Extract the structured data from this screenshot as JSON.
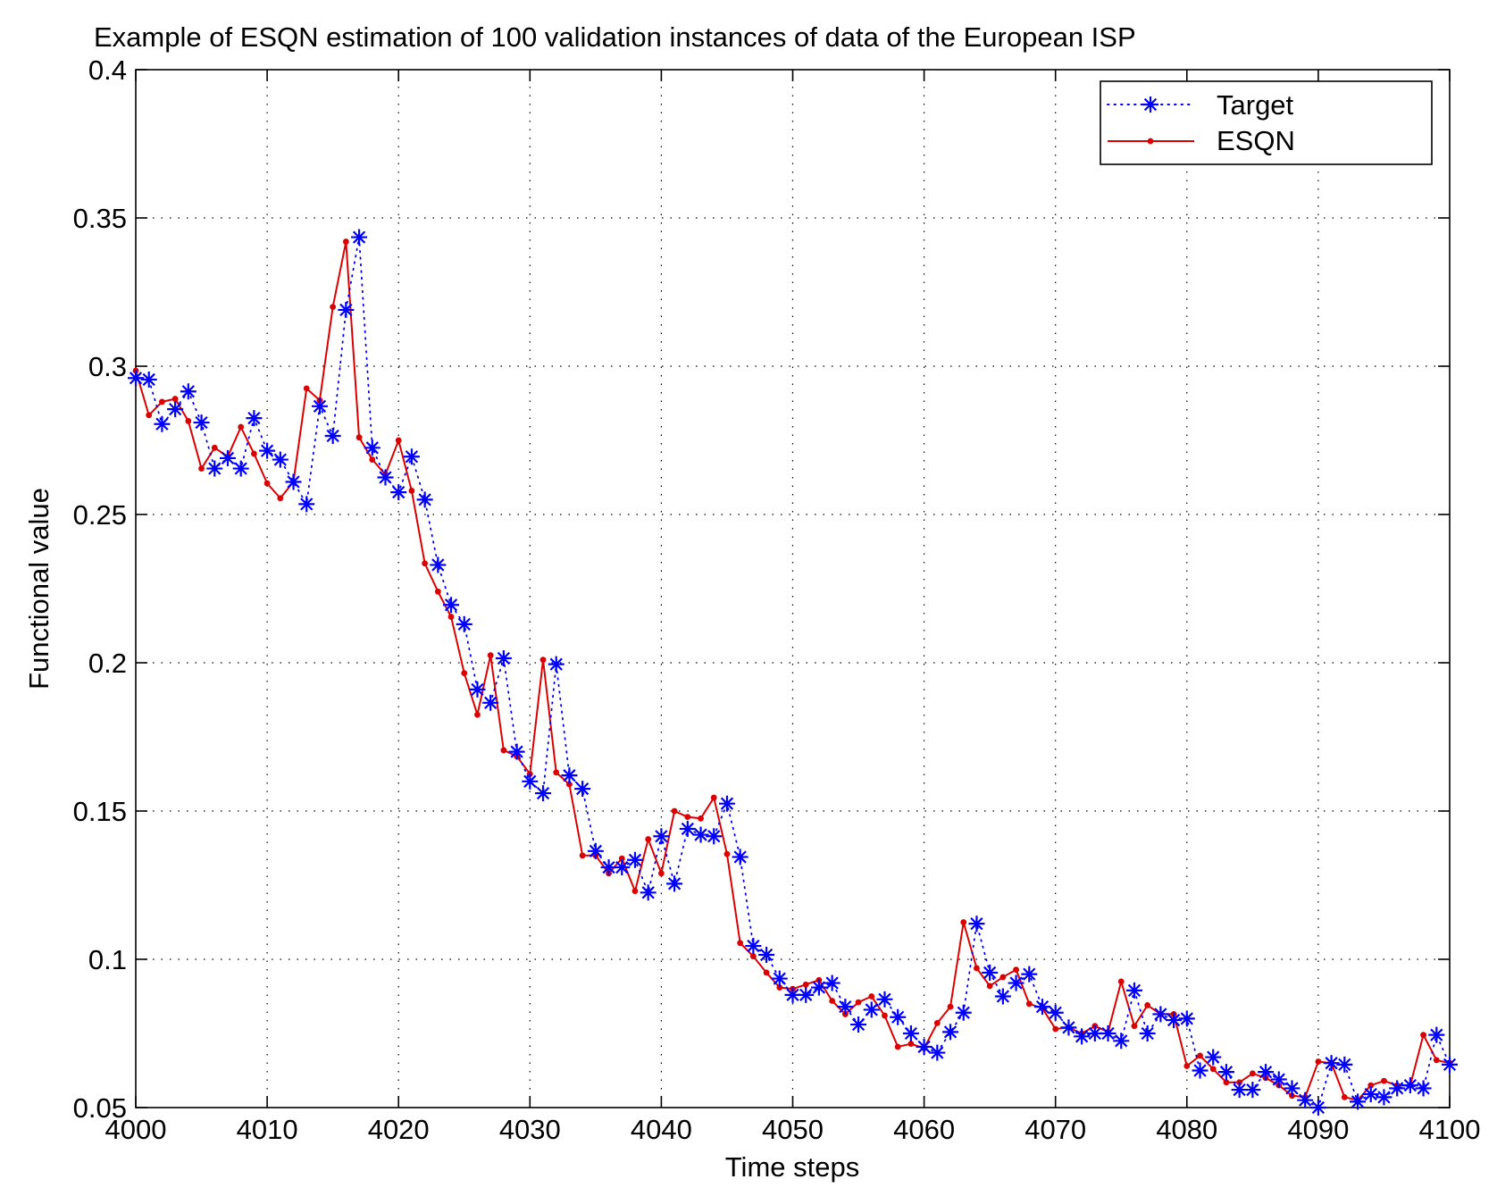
{
  "chart_data": {
    "type": "line",
    "title": "Example of ESQN estimation of 100 validation instances of  data of the European ISP",
    "xlabel": "Time steps",
    "ylabel": "Functional value",
    "xlim": [
      4000,
      4100
    ],
    "ylim": [
      0.05,
      0.4
    ],
    "xticks": [
      4000,
      4010,
      4020,
      4030,
      4040,
      4050,
      4060,
      4070,
      4080,
      4090,
      4100
    ],
    "xtick_labels": [
      "4000",
      "4010",
      "4020",
      "4030",
      "4040",
      "4050",
      "4060",
      "4070",
      "4080",
      "4090",
      "4100"
    ],
    "yticks": [
      0.05,
      0.1,
      0.15,
      0.2,
      0.25,
      0.3,
      0.35,
      0.4
    ],
    "ytick_labels": [
      "0.05",
      "0.1",
      "0.15",
      "0.2",
      "0.25",
      "0.3",
      "0.35",
      "0.4"
    ],
    "grid": true,
    "legend_position": "top-right",
    "x_start": 4000,
    "x_step": 1,
    "series": [
      {
        "name": "Target",
        "color": "#0000ff",
        "line_style": "dotted",
        "marker": "asterisk",
        "values": [
          0.296,
          0.2955,
          0.2805,
          0.2855,
          0.2915,
          0.281,
          0.2655,
          0.269,
          0.2655,
          0.2825,
          0.2715,
          0.2685,
          0.261,
          0.2535,
          0.2865,
          0.2765,
          0.319,
          0.3435,
          0.2725,
          0.2625,
          0.2575,
          0.2695,
          0.255,
          0.233,
          0.2195,
          0.213,
          0.191,
          0.1865,
          0.2015,
          0.17,
          0.16,
          0.156,
          0.1995,
          0.162,
          0.1575,
          0.1365,
          0.131,
          0.131,
          0.1335,
          0.1225,
          0.1415,
          0.1255,
          0.144,
          0.142,
          0.1415,
          0.1525,
          0.1345,
          0.1045,
          0.1015,
          0.0935,
          0.088,
          0.088,
          0.0905,
          0.092,
          0.084,
          0.078,
          0.083,
          0.0865,
          0.0805,
          0.075,
          0.0705,
          0.0685,
          0.0755,
          0.082,
          0.112,
          0.0955,
          0.0875,
          0.092,
          0.095,
          0.084,
          0.082,
          0.077,
          0.074,
          0.075,
          0.075,
          0.0725,
          0.0895,
          0.075,
          0.0815,
          0.0795,
          0.08,
          0.0625,
          0.067,
          0.062,
          0.056,
          0.056,
          0.062,
          0.0595,
          0.0565,
          0.0525,
          0.05,
          0.065,
          0.0645,
          0.052,
          0.0545,
          0.0535,
          0.0565,
          0.0575,
          0.0565,
          0.0745,
          0.0645
        ]
      },
      {
        "name": "ESQN",
        "color": "#dd0000",
        "line_style": "solid",
        "marker": "dot",
        "values": [
          0.2985,
          0.2835,
          0.288,
          0.289,
          0.2815,
          0.2655,
          0.2725,
          0.2695,
          0.2795,
          0.2705,
          0.2605,
          0.2555,
          0.261,
          0.2925,
          0.2885,
          0.32,
          0.342,
          0.276,
          0.2685,
          0.2635,
          0.275,
          0.258,
          0.2335,
          0.224,
          0.2155,
          0.1965,
          0.1825,
          0.2025,
          0.1705,
          0.1685,
          0.1625,
          0.201,
          0.163,
          0.159,
          0.135,
          0.135,
          0.129,
          0.134,
          0.123,
          0.1405,
          0.129,
          0.15,
          0.148,
          0.1475,
          0.1545,
          0.1355,
          0.1055,
          0.101,
          0.0955,
          0.0905,
          0.09,
          0.0915,
          0.093,
          0.086,
          0.0815,
          0.0855,
          0.0875,
          0.081,
          0.0705,
          0.0715,
          0.07,
          0.0785,
          0.084,
          0.1125,
          0.097,
          0.091,
          0.094,
          0.0965,
          0.085,
          0.0835,
          0.0765,
          0.077,
          0.075,
          0.0775,
          0.0755,
          0.0925,
          0.0775,
          0.0845,
          0.0815,
          0.0815,
          0.064,
          0.0675,
          0.063,
          0.0585,
          0.0585,
          0.0615,
          0.06,
          0.0575,
          0.054,
          0.0535,
          0.0655,
          0.065,
          0.0535,
          0.0525,
          0.0575,
          0.059,
          0.0575,
          0.0575,
          0.0745,
          0.066,
          0.065
        ]
      }
    ]
  }
}
